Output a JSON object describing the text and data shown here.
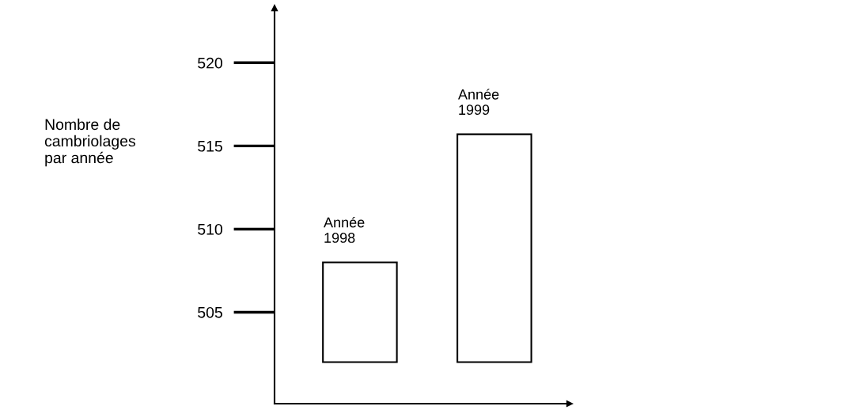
{
  "chart_data": {
    "type": "bar",
    "ylabel": "Nombre de\ncambriolages\npar année",
    "categories": [
      "Année\n1998",
      "Année\n1999"
    ],
    "values": [
      6,
      13.7
    ],
    "base": [
      502,
      502
    ],
    "color": "#ffffff",
    "ylim": [
      499.5,
      523.3
    ],
    "yticks": [
      505,
      510,
      515,
      520
    ],
    "grid": false,
    "legend": false
  }
}
